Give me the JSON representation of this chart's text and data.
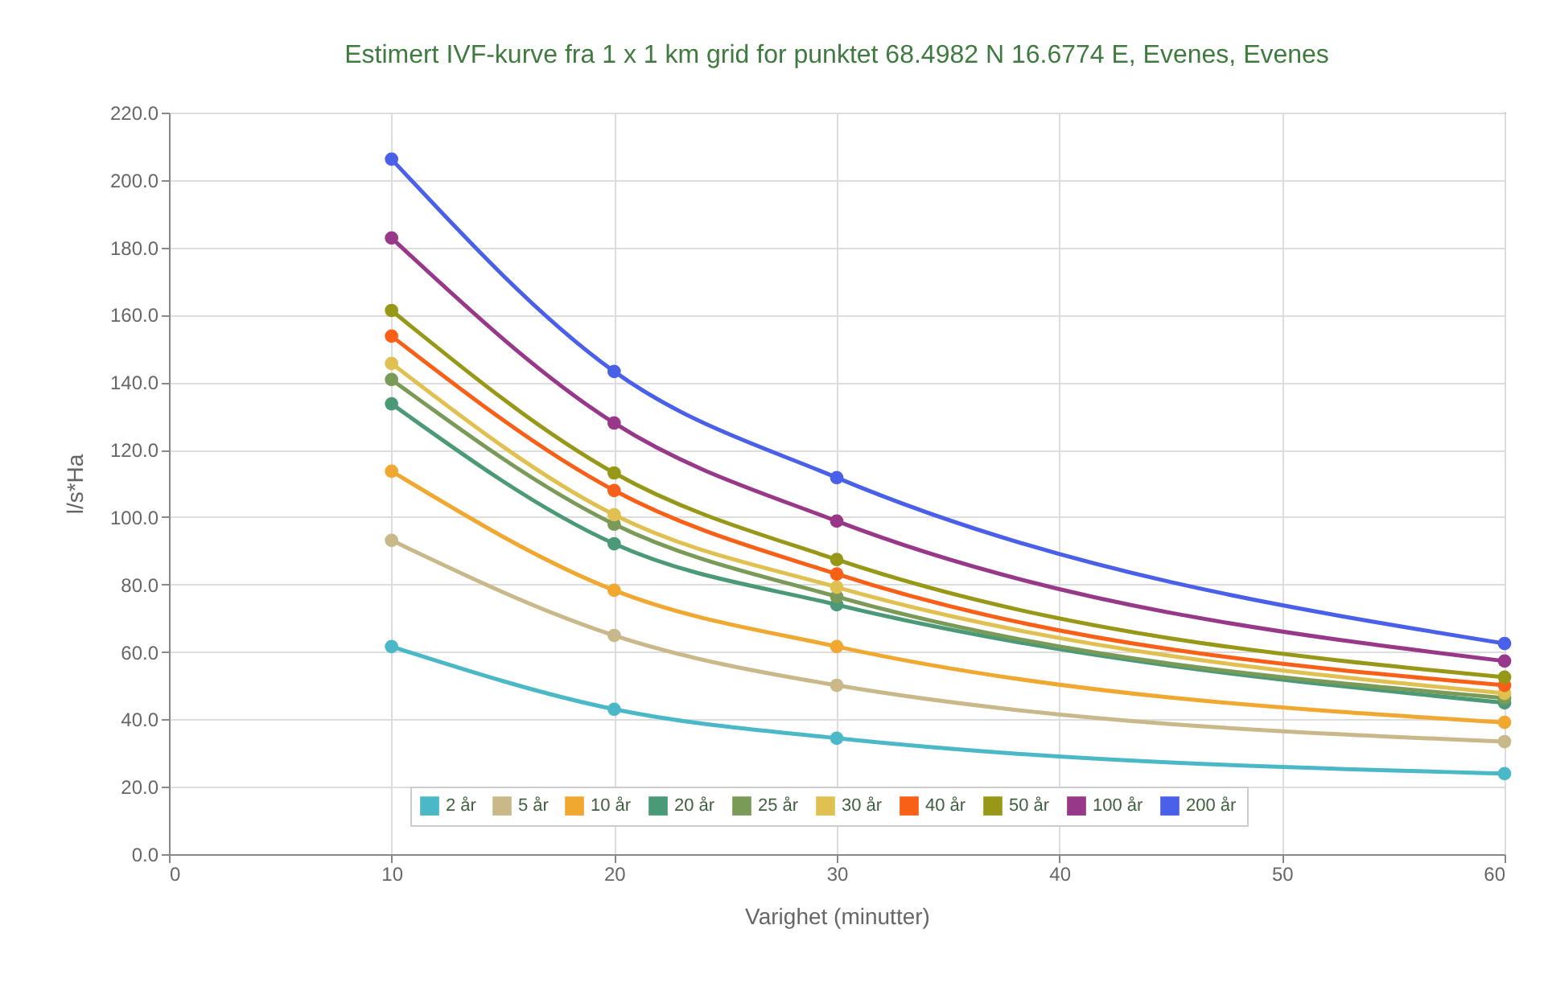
{
  "chart_data": {
    "type": "line",
    "title": "Estimert IVF-kurve fra 1 x 1 km grid for punktet 68.4982 N 16.6774 E, Evenes, Evenes",
    "xlabel": "Varighet (minutter)",
    "ylabel": "l/s*Ha",
    "x": [
      10,
      20,
      30,
      60
    ],
    "series": [
      {
        "name": "2 år",
        "color": "#4bb8c8",
        "values": [
          61.6,
          43.0,
          34.4,
          23.9
        ]
      },
      {
        "name": "5 år",
        "color": "#c8b88a",
        "values": [
          93.1,
          64.9,
          50.1,
          33.4
        ]
      },
      {
        "name": "10 år",
        "color": "#f0a830",
        "values": [
          113.6,
          78.3,
          61.6,
          39.1
        ]
      },
      {
        "name": "20 år",
        "color": "#4a9a78",
        "values": [
          133.6,
          92.1,
          74.0,
          44.9
        ]
      },
      {
        "name": "25 år",
        "color": "#7a9a58",
        "values": [
          140.8,
          97.9,
          76.4,
          46.3
        ]
      },
      {
        "name": "30 år",
        "color": "#e0c050",
        "values": [
          145.6,
          100.7,
          79.2,
          47.7
        ]
      },
      {
        "name": "40 år",
        "color": "#f86018",
        "values": [
          153.7,
          107.9,
          83.1,
          50.1
        ]
      },
      {
        "name": "50 år",
        "color": "#989818",
        "values": [
          161.3,
          113.1,
          87.4,
          52.5
        ]
      },
      {
        "name": "100 år",
        "color": "#983888",
        "values": [
          182.8,
          127.9,
          98.8,
          57.3
        ]
      },
      {
        "name": "200 år",
        "color": "#4a60e8",
        "values": [
          206.2,
          143.2,
          111.7,
          62.5
        ]
      }
    ],
    "xlim": [
      0,
      60
    ],
    "xticks": [
      0,
      10,
      20,
      30,
      40,
      50,
      60
    ],
    "ylim": [
      0,
      220
    ],
    "yticks": [
      {
        "value": 0,
        "label": "0.0"
      },
      {
        "value": 20,
        "label": "20.0"
      },
      {
        "value": 40,
        "label": "40.0"
      },
      {
        "value": 60,
        "label": "60.0"
      },
      {
        "value": 80,
        "label": "80.0"
      },
      {
        "value": 100,
        "label": "100.0"
      },
      {
        "value": 120,
        "label": "120.0"
      },
      {
        "value": 140,
        "label": "140.0"
      },
      {
        "value": 160,
        "label": "160.0"
      },
      {
        "value": 180,
        "label": "180.0"
      },
      {
        "value": 200,
        "label": "200.0"
      },
      {
        "value": 220,
        "label": "220.0"
      }
    ],
    "grid": true,
    "legend": "bottom left",
    "marker": "circle",
    "line_style": "solid"
  }
}
